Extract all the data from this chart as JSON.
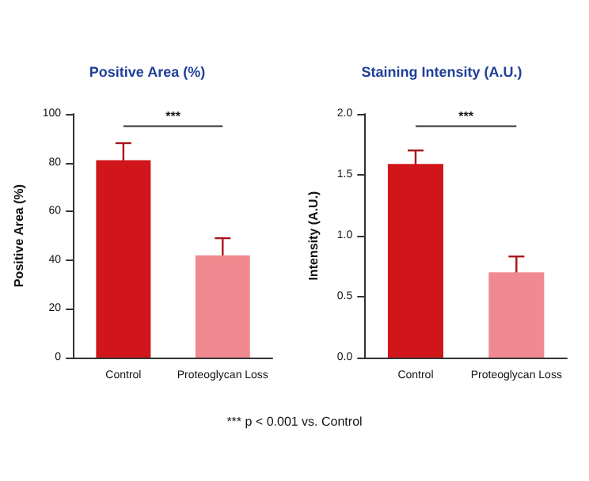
{
  "chart_data": [
    {
      "type": "bar",
      "title": "Positive Area (%)",
      "ylabel": "Positive Area (%)",
      "categories": [
        "Control",
        "Proteoglycan Loss"
      ],
      "values": [
        81,
        42
      ],
      "errors": [
        7,
        7
      ],
      "colors": [
        "#d0161a",
        "#f08a90"
      ],
      "ylim": [
        0,
        100
      ],
      "yticks": [
        0,
        20,
        40,
        60,
        80,
        100
      ],
      "grid": false,
      "annotations": [
        "***",
        "*** p < 0.001 vs. Control"
      ]
    },
    {
      "type": "bar",
      "title": "Staining Intensity (A.U.)",
      "ylabel": "Intensity (A.U.)",
      "categories": [
        "Control",
        "Proteoglycan Loss"
      ],
      "values": [
        1.59,
        0.7
      ],
      "errors": [
        0.11,
        0.13
      ],
      "colors": [
        "#d0161a",
        "#f08a90"
      ],
      "ylim": [
        0,
        2
      ],
      "yticks": [
        {
          "value": 0,
          "label": "0.0"
        },
        {
          "value": 0.5,
          "label": "0.5"
        },
        {
          "value": 1,
          "label": "1.0"
        },
        {
          "value": 1.5,
          "label": "1.5"
        },
        {
          "value": 2,
          "label": "2.0"
        }
      ],
      "grid": false,
      "annotations": [
        "***"
      ]
    }
  ]
}
